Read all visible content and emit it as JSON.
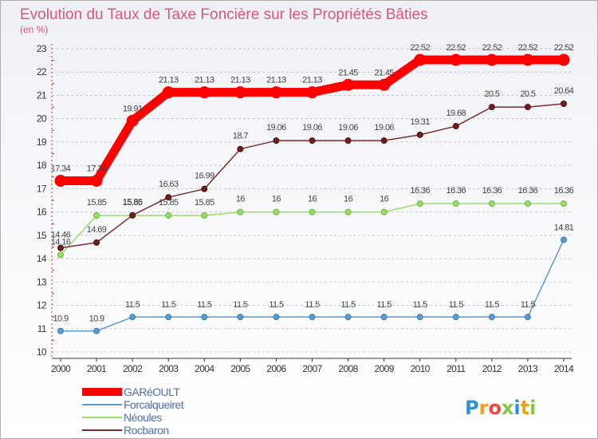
{
  "chart_data": {
    "type": "line",
    "title": "Evolution du Taux de Taxe Foncière sur les Propriétés Bâties",
    "subtitle": "(en %)",
    "xlabel": "",
    "ylabel": "",
    "x": [
      "2000",
      "2001",
      "2002",
      "2003",
      "2004",
      "2005",
      "2006",
      "2007",
      "2008",
      "2009",
      "2010",
      "2011",
      "2012",
      "2013",
      "2014"
    ],
    "ylim": [
      10,
      23
    ],
    "yticks": [
      "10",
      "11",
      "12",
      "13",
      "14",
      "15",
      "16",
      "17",
      "18",
      "19",
      "20",
      "21",
      "22",
      "23"
    ],
    "grid": "horizontal dashed",
    "legend_position": "bottom-left",
    "series": [
      {
        "name": "GARéOULT",
        "color": "#ff0000",
        "values": [
          17.34,
          17.34,
          19.91,
          21.13,
          21.13,
          21.13,
          21.13,
          21.13,
          21.45,
          21.45,
          22.52,
          22.52,
          22.52,
          22.52,
          22.52
        ],
        "labels": [
          "17.34",
          "17.34",
          "19.91",
          "21.13",
          "21.13",
          "21.13",
          "21.13",
          "21.13",
          "21.45",
          "21.45",
          "22.52",
          "22.52",
          "22.52",
          "22.52",
          "22.52"
        ]
      },
      {
        "name": "Forcalqueiret",
        "color": "#5b9bd5",
        "values": [
          10.9,
          10.9,
          11.5,
          11.5,
          11.5,
          11.5,
          11.5,
          11.5,
          11.5,
          11.5,
          11.5,
          11.5,
          11.5,
          11.5,
          14.81
        ],
        "labels": [
          "10.9",
          "10.9",
          "11.5",
          "11.5",
          "11.5",
          "11.5",
          "11.5",
          "11.5",
          "11.5",
          "11.5",
          "11.5",
          "11.5",
          "11.5",
          "11.5",
          "14.81"
        ]
      },
      {
        "name": "Néoules",
        "color": "#99dd66",
        "values": [
          14.16,
          15.85,
          15.85,
          15.85,
          15.85,
          16,
          16,
          16,
          16,
          16,
          16.36,
          16.36,
          16.36,
          16.36,
          16.36
        ],
        "labels": [
          "14.16",
          "15.85",
          "15.85",
          "15.85",
          "15.85",
          "16",
          "16",
          "16",
          "16",
          "16",
          "16.36",
          "16.36",
          "16.36",
          "16.36",
          "16.36"
        ]
      },
      {
        "name": "Rocbaron",
        "color": "#7a2e2e",
        "values": [
          14.46,
          14.69,
          15.86,
          16.63,
          16.99,
          18.7,
          19.06,
          19.06,
          19.06,
          19.06,
          19.31,
          19.68,
          20.5,
          20.5,
          20.64
        ],
        "labels": [
          "14.46",
          "14.69",
          "15.86",
          "16.63",
          "16.99",
          "18.7",
          "19.06",
          "19.06",
          "19.06",
          "19.06",
          "19.31",
          "19.68",
          "20.5",
          "20.5",
          "20.64"
        ]
      }
    ]
  },
  "branding": {
    "logo_letters": [
      "P",
      "r",
      "o",
      "x",
      "i",
      "t",
      "i"
    ],
    "logo_colors": [
      "#2f8fd6",
      "#f0a020",
      "#e74c3c",
      "#8bc34a",
      "#2f8fd6",
      "#f0a020",
      "#8bc34a"
    ]
  }
}
